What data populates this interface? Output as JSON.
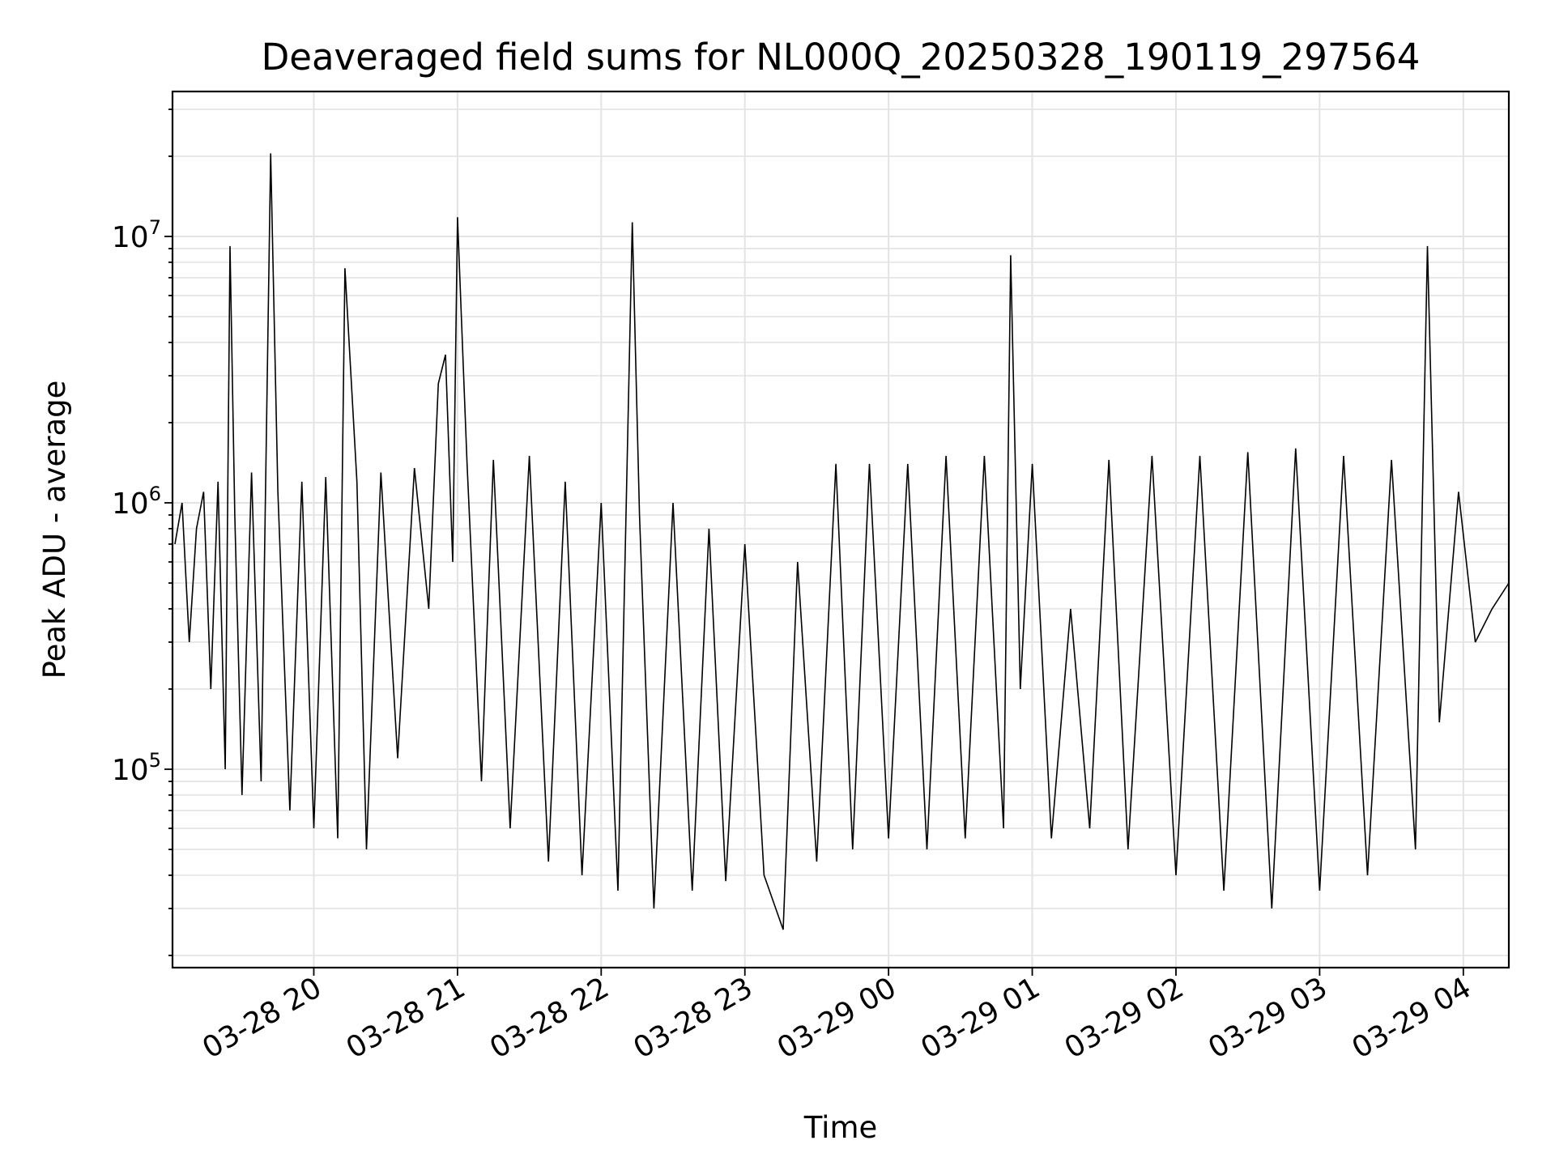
{
  "chart_data": {
    "type": "line",
    "title": "Deaveraged field sums for NL000Q_20250328_190119_297564",
    "xlabel": "Time",
    "ylabel": "Peak ADU - average",
    "yscale": "log",
    "x_range": [
      "03-28 19:01",
      "03-29 04:19"
    ],
    "ylim": [
      18000,
      35000000
    ],
    "grid": true,
    "line_color": "#000000",
    "x_ticks": [
      "03-28 20",
      "03-28 21",
      "03-28 22",
      "03-28 23",
      "03-29 00",
      "03-29 01",
      "03-29 02",
      "03-29 03",
      "03-29 04"
    ],
    "y_ticks": [
      {
        "value": 100000,
        "base": "10",
        "exp": "5"
      },
      {
        "value": 1000000,
        "base": "10",
        "exp": "6"
      },
      {
        "value": 10000000,
        "base": "10",
        "exp": "7"
      }
    ],
    "series": [
      {
        "points": [
          [
            "03-28 19:02",
            700000
          ],
          [
            "03-28 19:05",
            1000000
          ],
          [
            "03-28 19:08",
            300000
          ],
          [
            "03-28 19:11",
            800000
          ],
          [
            "03-28 19:14",
            1100000
          ],
          [
            "03-28 19:17",
            200000
          ],
          [
            "03-28 19:20",
            1200000
          ],
          [
            "03-28 19:23",
            100000
          ],
          [
            "03-28 19:25",
            9200000
          ],
          [
            "03-28 19:27",
            900000
          ],
          [
            "03-28 19:30",
            80000
          ],
          [
            "03-28 19:34",
            1300000
          ],
          [
            "03-28 19:38",
            90000
          ],
          [
            "03-28 19:42",
            20500000
          ],
          [
            "03-28 19:45",
            1100000
          ],
          [
            "03-28 19:50",
            70000
          ],
          [
            "03-28 19:55",
            1200000
          ],
          [
            "03-28 20:00",
            60000
          ],
          [
            "03-28 20:05",
            1250000
          ],
          [
            "03-28 20:10",
            55000
          ],
          [
            "03-28 20:13",
            7600000
          ],
          [
            "03-28 20:18",
            1200000
          ],
          [
            "03-28 20:22",
            50000
          ],
          [
            "03-28 20:28",
            1300000
          ],
          [
            "03-28 20:35",
            110000
          ],
          [
            "03-28 20:42",
            1350000
          ],
          [
            "03-28 20:48",
            400000
          ],
          [
            "03-28 20:52",
            2800000
          ],
          [
            "03-28 20:55",
            3600000
          ],
          [
            "03-28 20:58",
            600000
          ],
          [
            "03-28 21:00",
            11800000
          ],
          [
            "03-28 21:04",
            1400000
          ],
          [
            "03-28 21:10",
            90000
          ],
          [
            "03-28 21:15",
            1450000
          ],
          [
            "03-28 21:22",
            60000
          ],
          [
            "03-28 21:30",
            1500000
          ],
          [
            "03-28 21:38",
            45000
          ],
          [
            "03-28 21:45",
            1200000
          ],
          [
            "03-28 21:52",
            40000
          ],
          [
            "03-28 22:00",
            1000000
          ],
          [
            "03-28 22:07",
            35000
          ],
          [
            "03-28 22:13",
            11300000
          ],
          [
            "03-28 22:16",
            900000
          ],
          [
            "03-28 22:22",
            30000
          ],
          [
            "03-28 22:30",
            1000000
          ],
          [
            "03-28 22:38",
            35000
          ],
          [
            "03-28 22:45",
            800000
          ],
          [
            "03-28 22:52",
            38000
          ],
          [
            "03-28 23:00",
            700000
          ],
          [
            "03-28 23:08",
            40000
          ],
          [
            "03-28 23:16",
            25000
          ],
          [
            "03-28 23:22",
            600000
          ],
          [
            "03-28 23:30",
            45000
          ],
          [
            "03-28 23:38",
            1400000
          ],
          [
            "03-28 23:45",
            50000
          ],
          [
            "03-28 23:52",
            1400000
          ],
          [
            "03-29 00:00",
            55000
          ],
          [
            "03-29 00:08",
            1400000
          ],
          [
            "03-29 00:16",
            50000
          ],
          [
            "03-29 00:24",
            1500000
          ],
          [
            "03-29 00:32",
            55000
          ],
          [
            "03-29 00:40",
            1500000
          ],
          [
            "03-29 00:48",
            60000
          ],
          [
            "03-29 00:51",
            8500000
          ],
          [
            "03-29 00:55",
            200000
          ],
          [
            "03-29 01:00",
            1400000
          ],
          [
            "03-29 01:08",
            55000
          ],
          [
            "03-29 01:16",
            400000
          ],
          [
            "03-29 01:24",
            60000
          ],
          [
            "03-29 01:32",
            1450000
          ],
          [
            "03-29 01:40",
            50000
          ],
          [
            "03-29 01:50",
            1500000
          ],
          [
            "03-29 02:00",
            40000
          ],
          [
            "03-29 02:10",
            1500000
          ],
          [
            "03-29 02:20",
            35000
          ],
          [
            "03-29 02:30",
            1550000
          ],
          [
            "03-29 02:40",
            30000
          ],
          [
            "03-29 02:50",
            1600000
          ],
          [
            "03-29 03:00",
            35000
          ],
          [
            "03-29 03:10",
            1500000
          ],
          [
            "03-29 03:20",
            40000
          ],
          [
            "03-29 03:30",
            1450000
          ],
          [
            "03-29 03:40",
            50000
          ],
          [
            "03-29 03:45",
            9200000
          ],
          [
            "03-29 03:50",
            150000
          ],
          [
            "03-29 03:58",
            1100000
          ],
          [
            "03-29 04:05",
            300000
          ],
          [
            "03-29 04:12",
            400000
          ],
          [
            "03-29 04:19",
            500000
          ]
        ]
      }
    ]
  }
}
